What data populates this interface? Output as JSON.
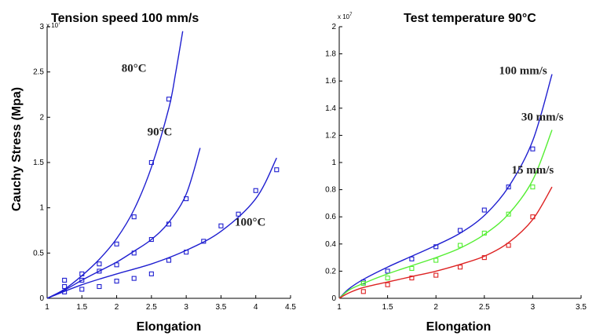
{
  "y_label": "Cauchy Stress (Mpa)",
  "chart_data": [
    {
      "type": "line",
      "title": "Tension speed 100 mm/s",
      "xlabel": "Elongation",
      "exponent": "x 10",
      "exponent_power": "7",
      "xlim": [
        1,
        4.5
      ],
      "ylim": [
        0,
        3
      ],
      "xticks": [
        1,
        1.5,
        2,
        2.5,
        3,
        3.5,
        4,
        4.5
      ],
      "xtick_labels": [
        "1",
        "1.5",
        "2",
        "2.5",
        "3",
        "3.5",
        "4",
        "4.5"
      ],
      "yticks": [
        0,
        0.5,
        1,
        1.5,
        2,
        2.5,
        3
      ],
      "ytick_labels": [
        "0",
        "0.5",
        "1",
        "1.5",
        "2",
        "2.5",
        "3"
      ],
      "series": [
        {
          "name": "80°C",
          "color": "#1f1fd0",
          "fit": {
            "x": [
              1,
              1.25,
              1.5,
              1.75,
              2,
              2.25,
              2.5,
              2.75,
              2.85,
              2.95
            ],
            "y": [
              0,
              0.1,
              0.25,
              0.43,
              0.66,
              0.98,
              1.45,
              2.1,
              2.5,
              2.95
            ]
          },
          "points": {
            "x": [
              1.25,
              1.5,
              1.75,
              2,
              2.25,
              2.5,
              2.75
            ],
            "y": [
              0.2,
              0.27,
              0.38,
              0.6,
              0.9,
              1.5,
              2.2
            ]
          }
        },
        {
          "name": "90°C",
          "color": "#1f1fd0",
          "fit": {
            "x": [
              1,
              1.25,
              1.5,
              1.75,
              2,
              2.25,
              2.5,
              2.75,
              3,
              3.2
            ],
            "y": [
              0,
              0.09,
              0.2,
              0.3,
              0.4,
              0.52,
              0.65,
              0.84,
              1.15,
              1.66
            ]
          },
          "points": {
            "x": [
              1.25,
              1.5,
              1.75,
              2,
              2.25,
              2.5,
              2.75,
              3
            ],
            "y": [
              0.13,
              0.2,
              0.3,
              0.37,
              0.5,
              0.65,
              0.82,
              1.1
            ]
          }
        },
        {
          "name": "100°C",
          "color": "#1f1fd0",
          "fit": {
            "x": [
              1,
              1.5,
              2,
              2.5,
              3,
              3.5,
              4,
              4.3
            ],
            "y": [
              0,
              0.15,
              0.27,
              0.38,
              0.53,
              0.74,
              1.1,
              1.55
            ]
          },
          "points": {
            "x": [
              1.25,
              1.5,
              1.75,
              2,
              2.25,
              2.5,
              2.75,
              3,
              3.25,
              3.5,
              3.75,
              4,
              4.3
            ],
            "y": [
              0.07,
              0.1,
              0.13,
              0.19,
              0.22,
              0.27,
              0.42,
              0.51,
              0.63,
              0.8,
              0.93,
              1.19,
              1.42
            ]
          }
        }
      ],
      "annotations": [
        {
          "text": "80°C",
          "x": 2.25,
          "y": 2.5
        },
        {
          "text": "90°C",
          "x": 2.62,
          "y": 1.8
        },
        {
          "text": "100°C",
          "x": 3.92,
          "y": 0.8
        }
      ]
    },
    {
      "type": "line",
      "title": "Test temperature 90°C",
      "xlabel": "Elongation",
      "exponent": "x 10",
      "exponent_power": "7",
      "xlim": [
        1,
        3.5
      ],
      "ylim": [
        0,
        2
      ],
      "xticks": [
        1,
        1.5,
        2,
        2.5,
        3,
        3.5
      ],
      "xtick_labels": [
        "1",
        "1.5",
        "2",
        "2.5",
        "3",
        "3.5"
      ],
      "yticks": [
        0,
        0.2,
        0.4,
        0.6,
        0.8,
        1,
        1.2,
        1.4,
        1.6,
        1.8,
        2
      ],
      "ytick_labels": [
        "0",
        "0.2",
        "0.4",
        "0.6",
        "0.8",
        "1",
        "1.2",
        "1.4",
        "1.6",
        "1.8",
        "2"
      ],
      "series": [
        {
          "name": "100 mm/s",
          "color": "#1f1fd0",
          "fit": {
            "x": [
              1,
              1.1,
              1.25,
              1.5,
              1.75,
              2,
              2.25,
              2.5,
              2.75,
              3,
              3.2
            ],
            "y": [
              0,
              0.07,
              0.14,
              0.23,
              0.31,
              0.39,
              0.48,
              0.61,
              0.82,
              1.16,
              1.65
            ]
          },
          "points": {
            "x": [
              1.25,
              1.5,
              1.75,
              2,
              2.25,
              2.5,
              2.75,
              3
            ],
            "y": [
              0.12,
              0.2,
              0.29,
              0.38,
              0.5,
              0.65,
              0.82,
              1.1
            ]
          }
        },
        {
          "name": "30 mm/s",
          "color": "#55ee33",
          "fit": {
            "x": [
              1,
              1.1,
              1.25,
              1.5,
              1.75,
              2,
              2.25,
              2.5,
              2.75,
              3,
              3.2
            ],
            "y": [
              0,
              0.06,
              0.11,
              0.18,
              0.24,
              0.3,
              0.37,
              0.47,
              0.62,
              0.87,
              1.24
            ]
          },
          "points": {
            "x": [
              1.25,
              1.5,
              1.75,
              2,
              2.25,
              2.5,
              2.75,
              3
            ],
            "y": [
              0.11,
              0.15,
              0.22,
              0.28,
              0.39,
              0.48,
              0.62,
              0.82
            ]
          }
        },
        {
          "name": "15 mm/s",
          "color": "#dd2222",
          "fit": {
            "x": [
              1,
              1.1,
              1.25,
              1.5,
              1.75,
              2,
              2.25,
              2.5,
              2.75,
              3,
              3.2
            ],
            "y": [
              0,
              0.04,
              0.08,
              0.12,
              0.16,
              0.2,
              0.25,
              0.31,
              0.41,
              0.58,
              0.82
            ]
          },
          "points": {
            "x": [
              1.25,
              1.5,
              1.75,
              2,
              2.25,
              2.5,
              2.75,
              3
            ],
            "y": [
              0.05,
              0.1,
              0.15,
              0.17,
              0.23,
              0.3,
              0.39,
              0.6
            ]
          }
        }
      ],
      "annotations": [
        {
          "text": "100 mm/s",
          "x": 2.9,
          "y": 1.65
        },
        {
          "text": "30 mm/s",
          "x": 3.1,
          "y": 1.31
        },
        {
          "text": "15 mm/s",
          "x": 3.0,
          "y": 0.92
        }
      ]
    }
  ]
}
